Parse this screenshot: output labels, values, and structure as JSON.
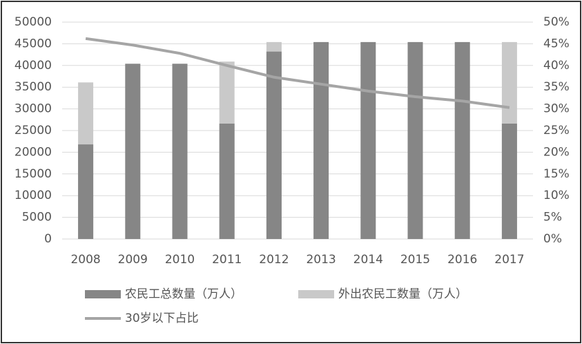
{
  "chart_data": {
    "type": "bar",
    "categories": [
      "2008",
      "2009",
      "2010",
      "2011",
      "2012",
      "2013",
      "2014",
      "2015",
      "2016",
      "2017"
    ],
    "series": [
      {
        "name": "农民工总数量（万人）",
        "type": "bar",
        "color": "#868686",
        "values": [
          21800,
          40400,
          40400,
          26600,
          43200,
          45400,
          45400,
          45400,
          45400,
          26600
        ]
      },
      {
        "name": "外出农民工数量（万人）",
        "type": "bar",
        "color": "#c9c9c9",
        "values": [
          36100,
          null,
          null,
          40900,
          45400,
          null,
          null,
          null,
          null,
          45400
        ]
      },
      {
        "name": "30岁以下占比",
        "type": "line",
        "axis": "y2",
        "color": "#a5a5a5",
        "values": [
          46.2,
          44.7,
          42.8,
          40.0,
          37.3,
          35.7,
          34.1,
          32.8,
          31.8,
          30.3
        ]
      }
    ],
    "ylim": [
      0,
      50000
    ],
    "yticks": [
      0,
      5000,
      10000,
      15000,
      20000,
      25000,
      30000,
      35000,
      40000,
      45000,
      50000
    ],
    "y2lim": [
      0,
      50
    ],
    "y2ticks": [
      {
        "value": 0,
        "label": "0%"
      },
      {
        "value": 5,
        "label": "5%"
      },
      {
        "value": 10,
        "label": "10%"
      },
      {
        "value": 15,
        "label": "15%"
      },
      {
        "value": 20,
        "label": "20%"
      },
      {
        "value": 25,
        "label": "25%"
      },
      {
        "value": 30,
        "label": "30%"
      },
      {
        "value": 35,
        "label": "35%"
      },
      {
        "value": 40,
        "label": "40%"
      },
      {
        "value": 45,
        "label": "45%"
      },
      {
        "value": 50,
        "label": "50%"
      }
    ],
    "grid": true,
    "legend": "bottom"
  }
}
